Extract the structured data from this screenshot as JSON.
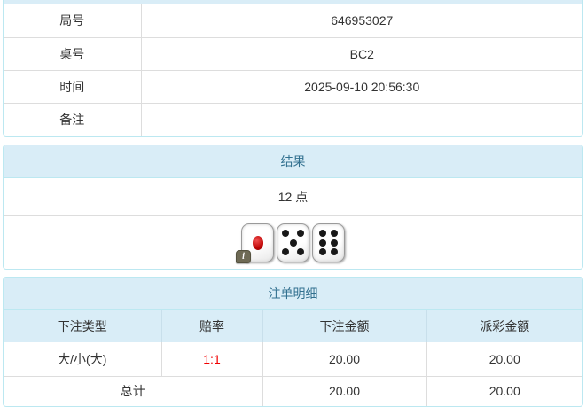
{
  "colors": {
    "heading_bg": "#d9edf7",
    "heading_text": "#31708f",
    "panel_border": "#bce8f1",
    "cell_border": "#dddddd",
    "body_text": "#333333",
    "odds_red": "#f00000"
  },
  "info_table": {
    "rows": [
      {
        "label": "局号",
        "value": "646953027"
      },
      {
        "label": "桌号",
        "value": "BC2"
      },
      {
        "label": "时间",
        "value": "2025-09-10 20:56:30"
      },
      {
        "label": "备注",
        "value": ""
      }
    ]
  },
  "result_panel": {
    "title": "结果",
    "points": "12 点",
    "dice": [
      1,
      5,
      6
    ],
    "info_badge": "i"
  },
  "bets_panel": {
    "title": "注单明细",
    "columns": [
      "下注类型",
      "赔率",
      "下注金额",
      "派彩金额"
    ],
    "rows": [
      {
        "type": "大/小(大)",
        "odds": "1:1",
        "bet": "20.00",
        "payout": "20.00"
      }
    ],
    "total": {
      "label": "总计",
      "bet": "20.00",
      "payout": "20.00"
    }
  }
}
